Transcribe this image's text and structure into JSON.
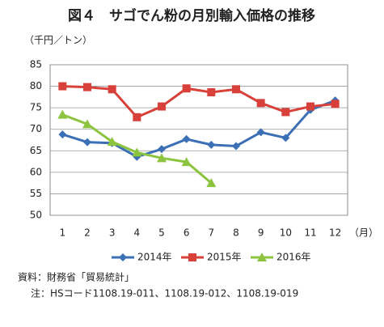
{
  "chart_data": {
    "type": "line",
    "title": "図４　サゴでん粉の月別輸入価格の推移",
    "y_label": "（千円／トン）",
    "x_label": "（月）",
    "categories": [
      "1",
      "2",
      "3",
      "4",
      "5",
      "6",
      "7",
      "8",
      "9",
      "10",
      "11",
      "12"
    ],
    "series": [
      {
        "name": "2014年",
        "color": "#3b6fb6",
        "marker": "diamond",
        "values": [
          68.8,
          67.0,
          66.8,
          63.6,
          65.4,
          67.7,
          66.4,
          66.1,
          69.3,
          68.0,
          74.5,
          76.7
        ]
      },
      {
        "name": "2015年",
        "color": "#d8403a",
        "marker": "square",
        "values": [
          80.0,
          79.8,
          79.3,
          72.8,
          75.3,
          79.5,
          78.6,
          79.3,
          76.1,
          74.0,
          75.3,
          75.9
        ]
      },
      {
        "name": "2016年",
        "color": "#8cc43f",
        "marker": "triangle",
        "values": [
          73.4,
          71.2,
          67.1,
          64.6,
          63.3,
          62.4,
          57.5,
          null,
          null,
          null,
          null,
          null
        ]
      }
    ],
    "ylim": [
      50,
      85
    ],
    "yticks": [
      50,
      55,
      60,
      65,
      70,
      75,
      80,
      85
    ],
    "grid": true,
    "legend": "bottom",
    "notes": [
      "資料：財務省「貿易統計」",
      "注：HSコード1108.19-011、1108.19-012、1108.19-019"
    ]
  }
}
